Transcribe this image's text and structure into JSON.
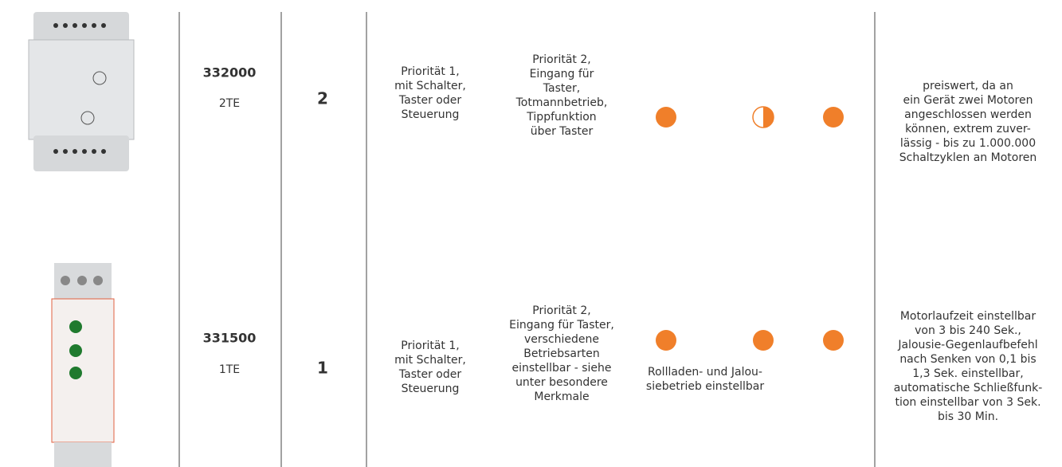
{
  "rows": [
    {
      "article": "332000",
      "width": "2TE",
      "count": "2",
      "priority1": [
        "Priorität 1,",
        "mit Schalter,",
        "Taster oder",
        "Steuerung"
      ],
      "priority2": [
        "Priorität 2,",
        "Eingang für",
        "Taster,",
        "Totmannbetrieb,",
        "Tippfunktion",
        "über Taster"
      ],
      "description": [
        "preiswert, da an",
        "ein Gerät zwei Motoren",
        "angeschlossen werden",
        "können, extrem zuver-",
        "lässig - bis zu 1.000.000",
        "Schaltzyklen an Motoren"
      ]
    },
    {
      "article": "331500",
      "width": "1TE",
      "count": "1",
      "priority1": [
        "Priorität 1,",
        "mit Schalter,",
        "Taster oder",
        "Steuerung"
      ],
      "priority2": [
        "Priorität 2,",
        "Eingang für Taster,",
        "verschiedene",
        "Betriebsarten",
        "einstellbar - siehe",
        "unter besondere",
        "Merkmale"
      ],
      "note": [
        "Rollladen- und Jalou-",
        "siebetrieb einstellbar"
      ],
      "description": [
        "Motorlaufzeit einstellbar",
        "von 3 bis 240 Sek.,",
        "Jalousie-Gegenlaufbefehl",
        "nach Senken von 0,1 bis",
        "1,3 Sek. einstellbar,",
        "automatische Schließfunk-",
        "tion einstellbar von 3 Sek.",
        "bis 30 Min."
      ]
    }
  ]
}
